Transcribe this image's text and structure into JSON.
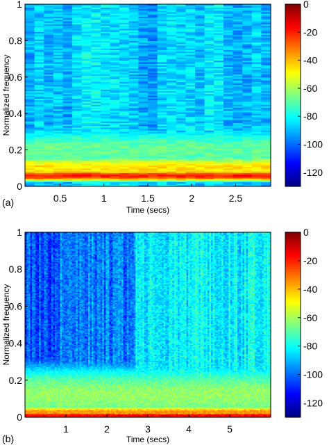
{
  "chart_data": [
    {
      "type": "heatmap",
      "panel_label": "(a)",
      "xlabel": "Time (secs)",
      "ylabel": "Normalized frequency",
      "xlim": [
        0.1,
        2.9
      ],
      "ylim": [
        0,
        1
      ],
      "x_ticks": [
        {
          "value": 0.5,
          "label": "0.5"
        },
        {
          "value": 1,
          "label": "1"
        },
        {
          "value": 1.5,
          "label": "1.5"
        },
        {
          "value": 2,
          "label": "2"
        },
        {
          "value": 2.5,
          "label": "2.5"
        }
      ],
      "y_ticks": [
        {
          "value": 0,
          "label": "0"
        },
        {
          "value": 0.2,
          "label": "0.2"
        },
        {
          "value": 0.4,
          "label": "0.4"
        },
        {
          "value": 0.6,
          "label": "0.6"
        },
        {
          "value": 0.8,
          "label": "0.8"
        },
        {
          "value": 1,
          "label": "1"
        }
      ],
      "colorbar": {
        "range": [
          -130,
          0
        ],
        "colormap": "jet",
        "ticks": [
          {
            "value": 0,
            "label": "0"
          },
          {
            "value": -20,
            "label": "-20"
          },
          {
            "value": -40,
            "label": "-40"
          },
          {
            "value": -60,
            "label": "-60"
          },
          {
            "value": -80,
            "label": "-80"
          },
          {
            "value": -100,
            "label": "-100"
          },
          {
            "value": -120,
            "label": "-120"
          }
        ]
      },
      "resolution": {
        "time_columns": 26,
        "freq_bins": 120
      },
      "background_level_db": -88,
      "features": [
        {
          "kind": "low_band",
          "freq_center": 0.06,
          "freq_width": 0.015,
          "level_db": -20
        },
        {
          "kind": "low_band",
          "freq_center": 0.1,
          "freq_width": 0.04,
          "level_db": -45
        },
        {
          "kind": "low_band",
          "freq_center": 0.2,
          "freq_width": 0.08,
          "level_db": -68
        }
      ]
    },
    {
      "type": "heatmap",
      "panel_label": "(b)",
      "xlabel": "Time (secs)",
      "ylabel": "Normalized frequency",
      "xlim": [
        0,
        6
      ],
      "ylim": [
        0,
        1
      ],
      "x_ticks": [
        {
          "value": 1,
          "label": "1"
        },
        {
          "value": 2,
          "label": "2"
        },
        {
          "value": 3,
          "label": "3"
        },
        {
          "value": 4,
          "label": "4"
        },
        {
          "value": 5,
          "label": "5"
        }
      ],
      "y_ticks": [
        {
          "value": 0,
          "label": "0"
        },
        {
          "value": 0.2,
          "label": "0.2"
        },
        {
          "value": 0.4,
          "label": "0.4"
        },
        {
          "value": 0.6,
          "label": "0.6"
        },
        {
          "value": 0.8,
          "label": "0.8"
        },
        {
          "value": 1,
          "label": "1"
        }
      ],
      "colorbar": {
        "range": [
          -130,
          0
        ],
        "colormap": "jet",
        "ticks": [
          {
            "value": 0,
            "label": "0"
          },
          {
            "value": -20,
            "label": "-20"
          },
          {
            "value": -40,
            "label": "-40"
          },
          {
            "value": -60,
            "label": "-60"
          },
          {
            "value": -80,
            "label": "-80"
          },
          {
            "value": -100,
            "label": "-100"
          },
          {
            "value": -120,
            "label": "-120"
          }
        ]
      },
      "resolution": {
        "time_columns": 140,
        "freq_bins": 150
      },
      "background_level_db": -100,
      "segments": [
        {
          "t_start": 0,
          "t_end": 0.85,
          "level_db": -104
        },
        {
          "t_start": 0.85,
          "t_end": 2.7,
          "level_db": -98
        },
        {
          "t_start": 2.7,
          "t_end": 6,
          "level_db": -82
        }
      ],
      "features": [
        {
          "kind": "low_band",
          "freq_center": 0.01,
          "freq_width": 0.01,
          "level_db": -15
        },
        {
          "kind": "low_band",
          "freq_center": 0.03,
          "freq_width": 0.015,
          "level_db": -35
        },
        {
          "kind": "low_band",
          "freq_center": 0.12,
          "freq_width": 0.1,
          "level_db": -62
        }
      ]
    }
  ]
}
